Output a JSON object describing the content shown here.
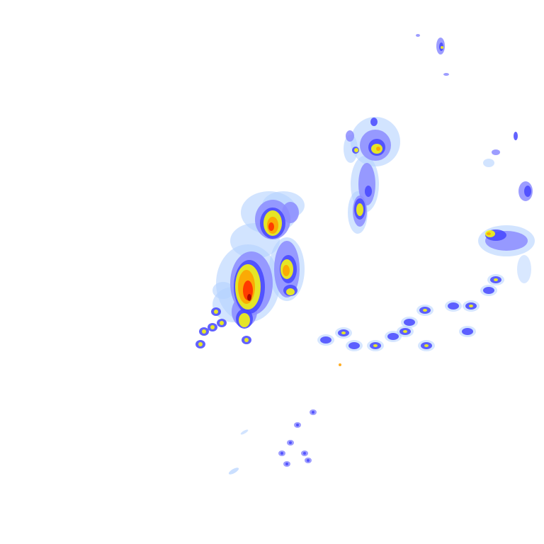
{
  "map": {
    "type": "weather-radar-reflectivity",
    "background": "#ffffff",
    "palette": {
      "very_light": "#b4d2ff",
      "light": "#8c8cff",
      "moderate": "#4646ff",
      "heavy": "#ffff00",
      "very_heavy": "#ffa000",
      "intense": "#ff2800",
      "extreme": "#a00000"
    }
  }
}
